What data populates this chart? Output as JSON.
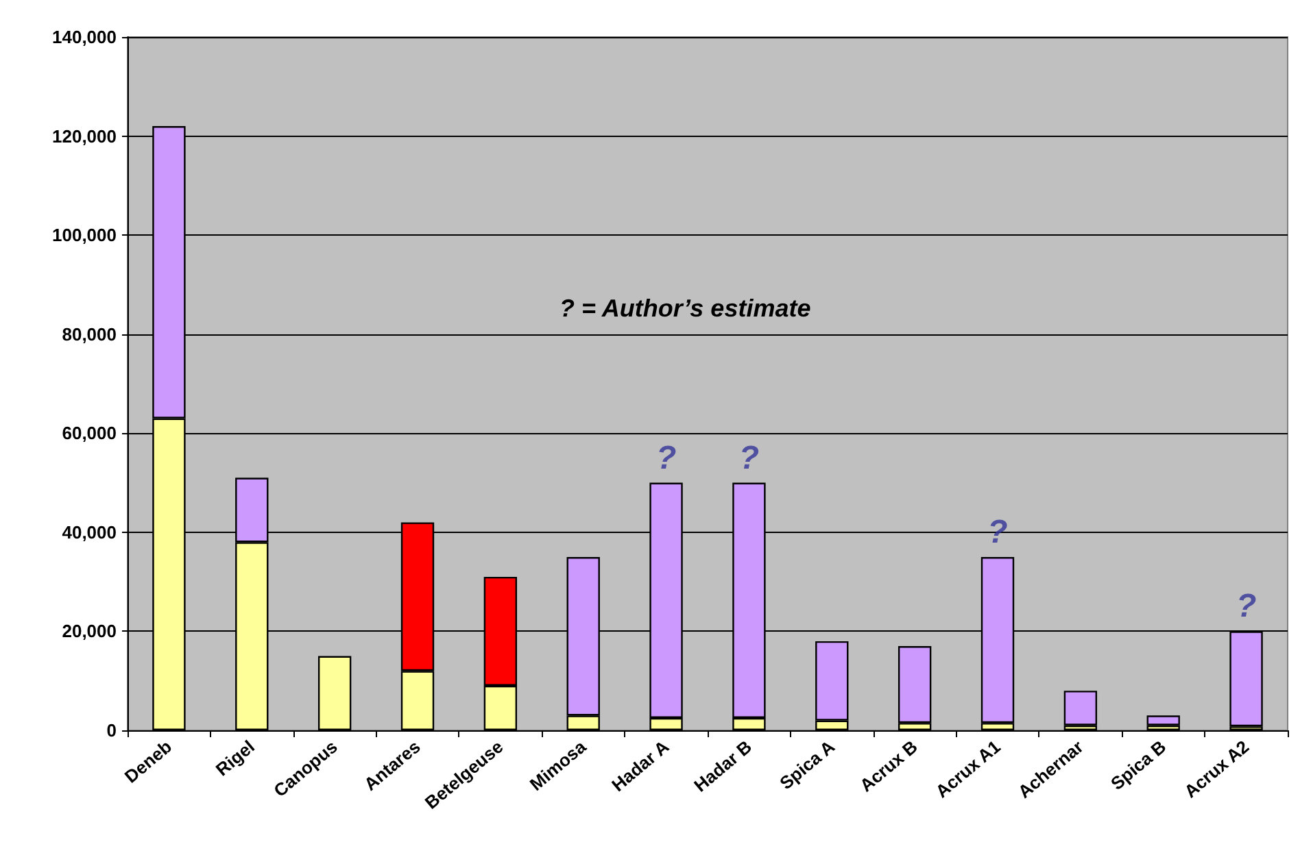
{
  "chart_data": {
    "type": "bar",
    "stacked": true,
    "categories": [
      "Deneb",
      "Rigel",
      "Canopus",
      "Antares",
      "Betelgeuse",
      "Mimosa",
      "Hadar A",
      "Hadar B",
      "Spica A",
      "Acrux B",
      "Acrux A1",
      "Achernar",
      "Spica B",
      "Acrux A2"
    ],
    "series": [
      {
        "color": "#ffff99",
        "values": [
          63000,
          38000,
          15000,
          12000,
          9000,
          3000,
          2500,
          2500,
          2000,
          1500,
          1500,
          1000,
          1000,
          800
        ]
      },
      {
        "color": "#cc99ff",
        "values": [
          59000,
          13000,
          null,
          null,
          null,
          32000,
          47500,
          47500,
          16000,
          15500,
          33500,
          7000,
          2000,
          19200
        ]
      },
      {
        "color": "#ff0000",
        "values": [
          null,
          null,
          null,
          30000,
          22000,
          null,
          null,
          null,
          null,
          null,
          null,
          null,
          null,
          null
        ]
      }
    ],
    "ylim": [
      0,
      140000
    ],
    "yticks": [
      {
        "value": 0,
        "label": "0"
      },
      {
        "value": 20000,
        "label": "20,000"
      },
      {
        "value": 40000,
        "label": "40,000"
      },
      {
        "value": 60000,
        "label": "60,000"
      },
      {
        "value": 80000,
        "label": "80,000"
      },
      {
        "value": 100000,
        "label": "100,000"
      },
      {
        "value": 120000,
        "label": "120,000"
      },
      {
        "value": 140000,
        "label": "140,000"
      }
    ],
    "grid": "y",
    "annotations": [
      "? = Author’s estimate",
      {
        "text": "?",
        "x": "Hadar A",
        "y": 50000
      },
      {
        "text": "?",
        "x": "Hadar B",
        "y": 50000
      },
      {
        "text": "?",
        "x": "Acrux A1",
        "y": 35000
      },
      {
        "text": "?",
        "x": "Acrux A2",
        "y": 20000
      }
    ]
  }
}
